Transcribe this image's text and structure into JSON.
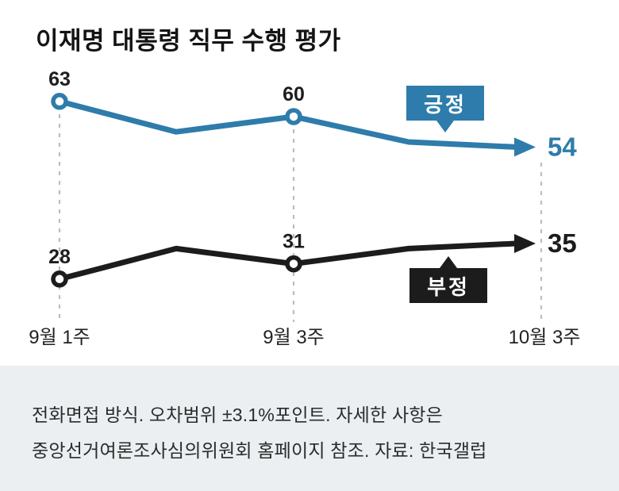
{
  "title": "이재명 대통령 직무 수행 평가",
  "colors": {
    "positive": "#2e7cab",
    "negative": "#1c1c1c",
    "guide": "#b8bfc3",
    "footer_bg": "#ebeff1"
  },
  "chart_data": {
    "type": "line",
    "title": "이재명 대통령 직무 수행 평가",
    "x_tick_labels": [
      "9월 1주",
      "9월 3주",
      "10월 3주"
    ],
    "ylim": [
      20,
      70
    ],
    "grid": "dashed vertical guides at labeled weeks",
    "legend_position": "inline boxes with pointer arrows",
    "series": [
      {
        "name": "긍정",
        "color": "#2e7cab",
        "values": [
          63,
          57,
          60,
          55,
          54
        ],
        "point_labels": [
          {
            "index": 0,
            "text": "63"
          },
          {
            "index": 2,
            "text": "60"
          }
        ],
        "end_label": "54"
      },
      {
        "name": "부정",
        "color": "#1c1c1c",
        "values": [
          28,
          34,
          31,
          34,
          35
        ],
        "point_labels": [
          {
            "index": 0,
            "text": "28"
          },
          {
            "index": 2,
            "text": "31"
          }
        ],
        "end_label": "35"
      }
    ]
  },
  "footer": {
    "line1": "전화면접 방식. 오차범위 ±3.1%포인트. 자세한 사항은",
    "line2": "중앙선거여론조사심의위원회 홈페이지 참조. 자료: 한국갤럽"
  }
}
